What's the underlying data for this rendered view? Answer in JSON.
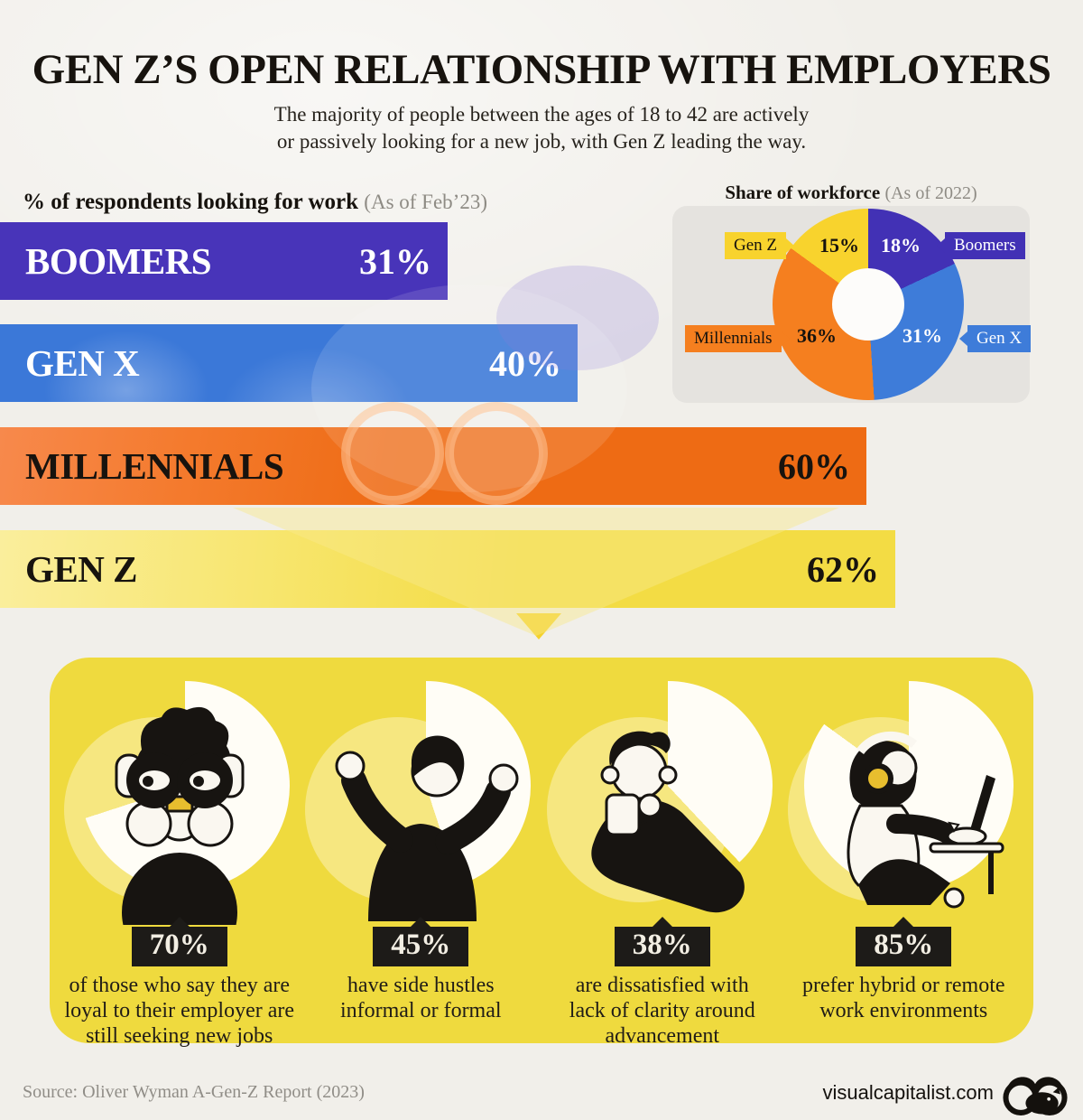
{
  "page": {
    "title": "GEN Z’S OPEN RELATIONSHIP WITH EMPLOYERS",
    "subtitle": "The majority of people between the ages of 18 to 42 are actively\nor passively looking for a new job, with Gen Z leading the way."
  },
  "chart_data": [
    {
      "type": "bar",
      "title": "% of respondents looking for work",
      "as_of": "(As of Feb’23)",
      "categories": [
        "BOOMERS",
        "GEN X",
        "MILLENNIALS",
        "GEN Z"
      ],
      "values": [
        31,
        40,
        60,
        62
      ],
      "value_labels": [
        "31%",
        "40%",
        "60%",
        "62%"
      ],
      "colors": [
        "#4834B9",
        "#3B78D8",
        "#EE6B14",
        "#F3DC44"
      ],
      "label_colors": [
        "#FFFFFF",
        "#FFFFFF",
        "#17130E",
        "#17130E"
      ],
      "unit": "%",
      "xlim": [
        0,
        62
      ],
      "orientation": "horizontal"
    },
    {
      "type": "pie",
      "subtype": "donut",
      "title": "Share of workforce",
      "as_of": "(As of 2022)",
      "labels": [
        "Boomers",
        "Gen X",
        "Millennials",
        "Gen Z"
      ],
      "values": [
        18,
        31,
        36,
        15
      ],
      "value_labels": [
        "18%",
        "31%",
        "36%",
        "15%"
      ],
      "colors": [
        "#4231B5",
        "#3E7CD9",
        "#F57F1F",
        "#F8D32D"
      ],
      "start_angle": "top",
      "direction": "clockwise"
    },
    {
      "type": "pie",
      "subtype": "gen-z-stat-pies",
      "items": [
        {
          "value": 70,
          "label": "70%",
          "caption": "of those who say they are\nloyal to their employer are\nstill seeking new jobs",
          "figure": "person-with-binoculars"
        },
        {
          "value": 45,
          "label": "45%",
          "caption": "have side hustles\ninformal or formal",
          "figure": "person-shrugging"
        },
        {
          "value": 38,
          "label": "38%",
          "caption": "are dissatisfied with\nlack of clarity around\nadvancement",
          "figure": "person-thinking-with-mug"
        },
        {
          "value": 85,
          "label": "85%",
          "caption": "prefer hybrid or remote\nwork environments",
          "figure": "person-working-on-laptop"
        }
      ]
    }
  ],
  "footer": {
    "source": "Source: Oliver Wyman A-Gen-Z Report (2023)",
    "site": "visualcapitalist.com"
  },
  "colors": {
    "background": "#F1EFEA",
    "panel_yellow": "#EFDA3E",
    "badge_black": "#1D1B18",
    "badge_text": "#F2EEE3",
    "note_gray": "#8E8B84",
    "card_gray": "#E5E3DF",
    "pointer_triangle": "#F4D22C"
  }
}
